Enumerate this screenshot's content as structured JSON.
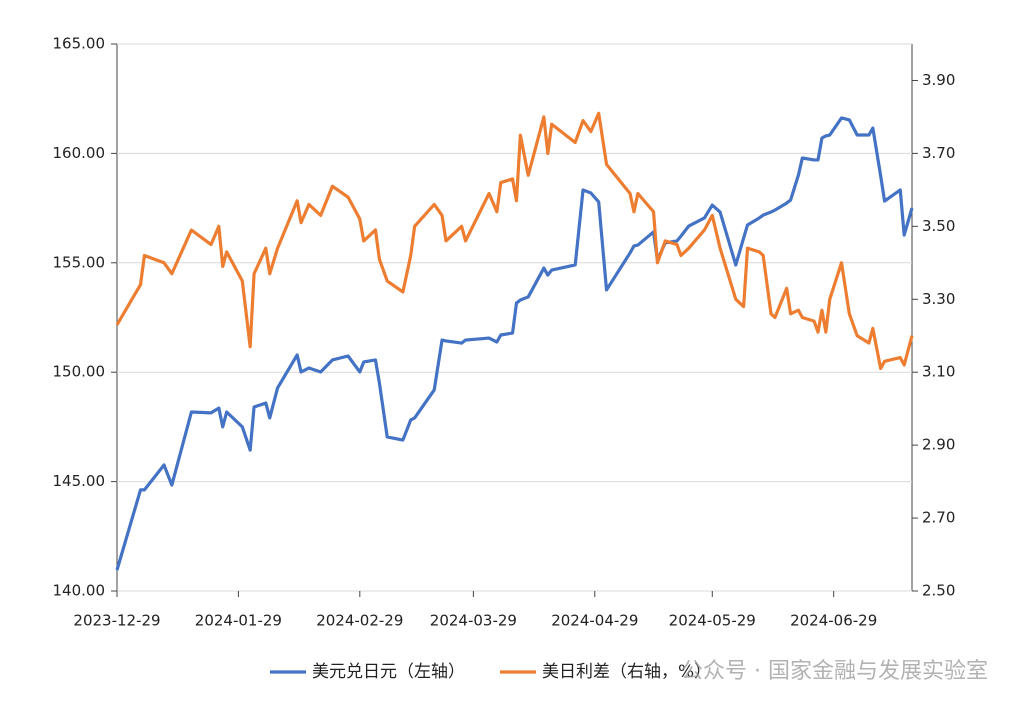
{
  "chart_data": {
    "type": "line",
    "x": [
      "2023-12-29",
      "2024-01-04",
      "2024-01-05",
      "2024-01-10",
      "2024-01-12",
      "2024-01-17",
      "2024-01-22",
      "2024-01-24",
      "2024-01-25",
      "2024-01-26",
      "2024-01-30",
      "2024-02-01",
      "2024-02-02",
      "2024-02-05",
      "2024-02-06",
      "2024-02-08",
      "2024-02-13",
      "2024-02-14",
      "2024-02-16",
      "2024-02-19",
      "2024-02-22",
      "2024-02-26",
      "2024-02-29",
      "2024-03-01",
      "2024-03-04",
      "2024-03-05",
      "2024-03-07",
      "2024-03-11",
      "2024-03-13",
      "2024-03-14",
      "2024-03-19",
      "2024-03-21",
      "2024-03-22",
      "2024-03-26",
      "2024-03-27",
      "2024-04-02",
      "2024-04-04",
      "2024-04-05",
      "2024-04-08",
      "2024-04-09",
      "2024-04-10",
      "2024-04-12",
      "2024-04-16",
      "2024-04-17",
      "2024-04-18",
      "2024-04-24",
      "2024-04-26",
      "2024-04-28",
      "2024-04-30",
      "2024-05-02",
      "2024-05-08",
      "2024-05-09",
      "2024-05-10",
      "2024-05-14",
      "2024-05-15",
      "2024-05-17",
      "2024-05-20",
      "2024-05-21",
      "2024-05-23",
      "2024-05-27",
      "2024-05-29",
      "2024-05-31",
      "2024-06-04",
      "2024-06-06",
      "2024-06-07",
      "2024-06-10",
      "2024-06-11",
      "2024-06-13",
      "2024-06-14",
      "2024-06-17",
      "2024-06-18",
      "2024-06-20",
      "2024-06-21",
      "2024-06-24",
      "2024-06-25",
      "2024-06-26",
      "2024-06-27",
      "2024-06-28",
      "2024-07-01",
      "2024-07-03",
      "2024-07-05",
      "2024-07-08",
      "2024-07-09",
      "2024-07-11",
      "2024-07-12",
      "2024-07-16",
      "2024-07-17",
      "2024-07-19"
    ],
    "series": [
      {
        "name": "美元兑日元（左轴）",
        "color": "#4472c4",
        "axis": "y",
        "values": [
          140.96,
          144.62,
          144.62,
          145.76,
          144.84,
          148.18,
          148.14,
          148.36,
          147.5,
          148.18,
          147.5,
          146.44,
          148.41,
          148.59,
          147.91,
          149.28,
          150.79,
          150.01,
          150.19,
          150.01,
          150.56,
          150.74,
          150.01,
          150.47,
          150.56,
          149.51,
          147.04,
          146.9,
          147.82,
          147.91,
          149.19,
          151.47,
          151.43,
          151.33,
          151.47,
          151.56,
          151.38,
          151.7,
          151.79,
          153.16,
          153.3,
          153.44,
          154.76,
          154.44,
          154.67,
          154.9,
          158.33,
          158.19,
          157.78,
          153.76,
          155.45,
          155.77,
          155.81,
          156.41,
          155.13,
          155.91,
          156.0,
          156.22,
          156.68,
          157.05,
          157.64,
          157.32,
          154.9,
          156.13,
          156.73,
          157.05,
          157.18,
          157.32,
          157.41,
          157.73,
          157.87,
          159.01,
          159.79,
          159.7,
          159.7,
          160.7,
          160.8,
          160.84,
          161.62,
          161.53,
          160.84,
          160.84,
          161.16,
          158.97,
          157.82,
          158.33,
          156.27,
          157.5
        ]
      },
      {
        "name": "美日利差（右轴，%）",
        "color": "#ed7d31",
        "axis": "y2",
        "values": [
          3.23,
          3.34,
          3.42,
          3.4,
          3.37,
          3.49,
          3.45,
          3.5,
          3.39,
          3.43,
          3.35,
          3.17,
          3.37,
          3.44,
          3.37,
          3.44,
          3.57,
          3.51,
          3.56,
          3.53,
          3.61,
          3.58,
          3.52,
          3.46,
          3.49,
          3.41,
          3.35,
          3.32,
          3.42,
          3.5,
          3.56,
          3.53,
          3.46,
          3.5,
          3.46,
          3.59,
          3.54,
          3.62,
          3.63,
          3.57,
          3.75,
          3.64,
          3.8,
          3.7,
          3.78,
          3.73,
          3.79,
          3.76,
          3.81,
          3.67,
          3.59,
          3.54,
          3.59,
          3.54,
          3.4,
          3.46,
          3.45,
          3.42,
          3.44,
          3.49,
          3.53,
          3.44,
          3.3,
          3.28,
          3.44,
          3.43,
          3.42,
          3.26,
          3.25,
          3.33,
          3.26,
          3.27,
          3.25,
          3.24,
          3.21,
          3.27,
          3.21,
          3.3,
          3.4,
          3.26,
          3.2,
          3.18,
          3.22,
          3.11,
          3.13,
          3.14,
          3.12,
          3.2
        ]
      }
    ],
    "xlim": [
      "2023-12-29",
      "2024-07-19"
    ],
    "xticks": [
      "2023-12-29",
      "2024-01-29",
      "2024-02-29",
      "2024-03-29",
      "2024-04-29",
      "2024-05-29",
      "2024-06-29"
    ],
    "ylim": [
      140,
      165
    ],
    "yticks": [
      {
        "value": 140,
        "label": "140.00"
      },
      {
        "value": 145,
        "label": "145.00"
      },
      {
        "value": 150,
        "label": "150.00"
      },
      {
        "value": 155,
        "label": "155.00"
      },
      {
        "value": 160,
        "label": "160.00"
      },
      {
        "value": 165,
        "label": "165.00"
      }
    ],
    "y2lim": [
      2.5,
      4.0
    ],
    "y2ticks": [
      {
        "value": 2.5,
        "label": "2.50"
      },
      {
        "value": 2.7,
        "label": "2.70"
      },
      {
        "value": 2.9,
        "label": "2.90"
      },
      {
        "value": 3.1,
        "label": "3.10"
      },
      {
        "value": 3.3,
        "label": "3.30"
      },
      {
        "value": 3.5,
        "label": "3.50"
      },
      {
        "value": 3.7,
        "label": "3.70"
      },
      {
        "value": 3.9,
        "label": "3.90"
      }
    ],
    "grid": true,
    "watermark": "公众号 · 国家金融与发展实验室"
  }
}
